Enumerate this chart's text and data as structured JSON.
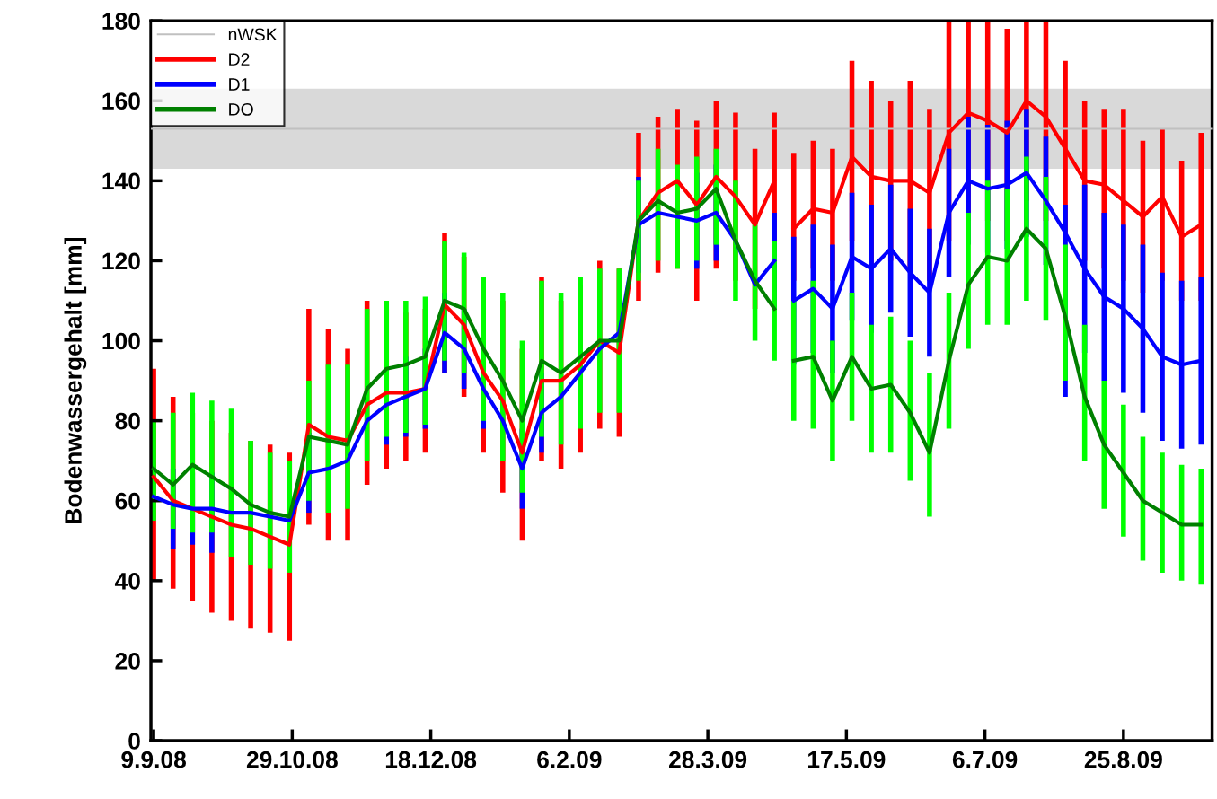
{
  "chart_data": {
    "type": "line",
    "ylabel": "Bodenwassergehalt [mm]",
    "x": [
      "2008-09-09",
      "2008-09-16",
      "2008-09-23",
      "2008-09-30",
      "2008-10-07",
      "2008-10-14",
      "2008-10-21",
      "2008-10-28",
      "2008-11-04",
      "2008-11-11",
      "2008-11-18",
      "2008-11-25",
      "2008-12-02",
      "2008-12-09",
      "2008-12-16",
      "2008-12-23",
      "2008-12-30",
      "2009-01-06",
      "2009-01-13",
      "2009-01-20",
      "2009-01-27",
      "2009-02-03",
      "2009-02-10",
      "2009-02-17",
      "2009-02-24",
      "2009-03-03",
      "2009-03-10",
      "2009-03-17",
      "2009-03-24",
      "2009-03-31",
      "2009-04-07",
      "2009-04-14",
      "2009-04-21",
      "2009-04-24",
      "2009-04-28",
      "2009-05-05",
      "2009-05-12",
      "2009-05-19",
      "2009-05-26",
      "2009-06-02",
      "2009-06-09",
      "2009-06-16",
      "2009-06-23",
      "2009-06-30",
      "2009-07-07",
      "2009-07-14",
      "2009-07-21",
      "2009-07-28",
      "2009-08-04",
      "2009-08-11",
      "2009-08-18",
      "2009-08-25",
      "2009-09-01",
      "2009-09-08",
      "2009-09-15",
      "2009-09-22"
    ],
    "series": [
      {
        "name": "nWSK",
        "color": "#c0c0c0",
        "x": [
          "2008-09-08",
          "2009-09-26"
        ],
        "values": [
          153,
          153
        ]
      },
      {
        "name": "D2",
        "color": "#ff0000",
        "values": [
          66,
          60,
          58,
          56,
          54,
          53,
          51,
          49,
          79,
          76,
          75,
          84,
          87,
          87,
          88,
          109,
          104,
          92,
          85,
          72,
          90,
          90,
          94,
          100,
          97,
          130,
          137,
          140,
          134,
          141,
          136,
          129,
          140,
          null,
          128,
          133,
          132,
          146,
          141,
          140,
          140,
          137,
          152,
          157,
          155,
          152,
          160,
          156,
          148,
          140,
          139,
          135,
          131,
          136,
          126,
          129
        ],
        "errors": [
          [
            40,
            93
          ],
          [
            38,
            86
          ],
          [
            35,
            82
          ],
          [
            32,
            80
          ],
          [
            30,
            77
          ],
          [
            28,
            75
          ],
          [
            27,
            74
          ],
          [
            25,
            72
          ],
          [
            54,
            108
          ],
          [
            50,
            103
          ],
          [
            50,
            98
          ],
          [
            64,
            110
          ],
          [
            68,
            108
          ],
          [
            70,
            107
          ],
          [
            72,
            108
          ],
          [
            92,
            127
          ],
          [
            86,
            121
          ],
          [
            72,
            113
          ],
          [
            62,
            110
          ],
          [
            50,
            98
          ],
          [
            70,
            116
          ],
          [
            68,
            110
          ],
          [
            72,
            114
          ],
          [
            78,
            120
          ],
          [
            76,
            118
          ],
          [
            110,
            152
          ],
          [
            117,
            156
          ],
          [
            118,
            158
          ],
          [
            110,
            155
          ],
          [
            118,
            160
          ],
          [
            115,
            157
          ],
          [
            108,
            148
          ],
          [
            125,
            157
          ],
          null,
          [
            115,
            147
          ],
          [
            118,
            150
          ],
          [
            115,
            148
          ],
          [
            125,
            170
          ],
          [
            118,
            165
          ],
          [
            120,
            160
          ],
          [
            118,
            165
          ],
          [
            115,
            158
          ],
          [
            125,
            180
          ],
          [
            130,
            180
          ],
          [
            130,
            180
          ],
          [
            125,
            178
          ],
          [
            135,
            180
          ],
          [
            130,
            180
          ],
          [
            125,
            170
          ],
          [
            120,
            160
          ],
          [
            118,
            158
          ],
          [
            115,
            158
          ],
          [
            112,
            150
          ],
          [
            115,
            153
          ],
          [
            110,
            145
          ],
          [
            110,
            152
          ]
        ]
      },
      {
        "name": "D1",
        "color": "#0000ff",
        "values": [
          61,
          59,
          58,
          58,
          57,
          57,
          56,
          55,
          67,
          68,
          70,
          80,
          84,
          86,
          88,
          102,
          98,
          88,
          80,
          68,
          82,
          86,
          92,
          98,
          102,
          129,
          132,
          131,
          130,
          132,
          125,
          114,
          120,
          null,
          110,
          113,
          108,
          121,
          118,
          123,
          117,
          112,
          132,
          140,
          138,
          139,
          142,
          135,
          127,
          118,
          111,
          108,
          103,
          96,
          94,
          95
        ],
        "errors": [
          null,
          [
            48,
            68
          ],
          [
            49,
            67
          ],
          [
            47,
            67
          ],
          null,
          null,
          null,
          null,
          [
            57,
            77
          ],
          null,
          null,
          null,
          [
            74,
            94
          ],
          [
            76,
            96
          ],
          [
            78,
            98
          ],
          [
            92,
            112
          ],
          [
            88,
            108
          ],
          [
            78,
            98
          ],
          null,
          [
            58,
            78
          ],
          [
            72,
            92
          ],
          null,
          null,
          null,
          null,
          [
            117,
            141
          ],
          null,
          null,
          [
            118,
            142
          ],
          [
            120,
            144
          ],
          null,
          null,
          [
            108,
            132
          ],
          null,
          [
            94,
            126
          ],
          [
            97,
            129
          ],
          [
            92,
            124
          ],
          [
            105,
            137
          ],
          [
            102,
            134
          ],
          [
            107,
            139
          ],
          [
            101,
            133
          ],
          [
            96,
            128
          ],
          [
            116,
            148
          ],
          [
            124,
            156
          ],
          [
            122,
            154
          ],
          [
            123,
            155
          ],
          [
            126,
            158
          ],
          [
            119,
            151
          ],
          [
            86,
            134
          ],
          [
            97,
            139
          ],
          [
            90,
            132
          ],
          [
            87,
            129
          ],
          [
            82,
            124
          ],
          [
            75,
            117
          ],
          [
            73,
            115
          ],
          [
            74,
            116
          ]
        ]
      },
      {
        "name": "DO",
        "color": "#008000",
        "colors": [
          "#00ff00",
          "#00ff00",
          "#00ff00",
          "#00ff00",
          "#00ff00",
          "#00ff00",
          "#00ff00",
          "#00ff00",
          "#00ff00",
          "#00ff00",
          "#00ff00",
          "#00ff00",
          "#00ff00",
          "#00ff00",
          "#00ff00",
          "#00ff00",
          "#00ff00",
          "#00ff00",
          "#00ff00",
          "#00ff00",
          "#00ff00",
          "#00ff00",
          "#00ff00",
          "#00ff00",
          "#00ff00",
          "#00ff00",
          "#00ff00",
          "#00ff00",
          "#00ff00",
          "#00ff00",
          "#00ff00",
          "#00ff00",
          "#00ff00",
          "#00ff00",
          "#00ff00",
          "#00ff00",
          "#00ff00",
          "#00ff00",
          "#00ff00",
          "#00ff00",
          "#00ff00",
          "#00ff00",
          "#00ff00",
          "#00ff00",
          "#00ff00",
          "#00ff00",
          "#00ff00",
          "#00ff00",
          "#00ff00",
          "#00ff00",
          "#00ff00",
          "#00ff00",
          "#00ff00",
          "#00ff00",
          "#00ff00",
          "#00ff00"
        ],
        "values": [
          68,
          64,
          69,
          66,
          63,
          59,
          57,
          56,
          76,
          75,
          74,
          88,
          93,
          94,
          96,
          110,
          108,
          98,
          90,
          80,
          95,
          92,
          96,
          100,
          100,
          130,
          135,
          132,
          133,
          138,
          125,
          115,
          108,
          null,
          95,
          96,
          85,
          96,
          88,
          89,
          82,
          72,
          95,
          114,
          121,
          120,
          128,
          123,
          106,
          86,
          74,
          67,
          60,
          57,
          54,
          54
        ],
        "errors": [
          [
            55,
            80
          ],
          [
            53,
            82
          ],
          [
            52,
            87
          ],
          [
            52,
            85
          ],
          [
            46,
            83
          ],
          [
            44,
            75
          ],
          [
            43,
            72
          ],
          [
            42,
            70
          ],
          [
            60,
            90
          ],
          [
            57,
            94
          ],
          [
            58,
            94
          ],
          [
            70,
            108
          ],
          [
            76,
            110
          ],
          [
            77,
            110
          ],
          [
            79,
            111
          ],
          [
            95,
            125
          ],
          [
            92,
            122
          ],
          [
            80,
            116
          ],
          [
            70,
            112
          ],
          [
            62,
            100
          ],
          [
            76,
            115
          ],
          [
            74,
            112
          ],
          [
            78,
            116
          ],
          [
            82,
            118
          ],
          [
            82,
            118
          ],
          [
            115,
            140
          ],
          [
            120,
            148
          ],
          [
            118,
            144
          ],
          [
            120,
            146
          ],
          [
            124,
            148
          ],
          [
            110,
            140
          ],
          [
            100,
            130
          ],
          [
            95,
            125
          ],
          null,
          [
            80,
            110
          ],
          [
            78,
            115
          ],
          [
            70,
            100
          ],
          [
            80,
            112
          ],
          [
            72,
            104
          ],
          [
            72,
            106
          ],
          [
            65,
            100
          ],
          [
            56,
            92
          ],
          [
            78,
            112
          ],
          [
            98,
            132
          ],
          [
            104,
            140
          ],
          [
            104,
            138
          ],
          [
            110,
            146
          ],
          [
            105,
            141
          ],
          [
            90,
            124
          ],
          [
            70,
            104
          ],
          [
            58,
            90
          ],
          [
            51,
            84
          ],
          [
            45,
            76
          ],
          [
            42,
            72
          ],
          [
            40,
            69
          ],
          [
            39,
            68
          ]
        ]
      }
    ],
    "xlim": [
      "2008-09-08",
      "2009-09-26"
    ],
    "xticks": [
      {
        "value": "2008-09-09",
        "label": "9.9.08"
      },
      {
        "value": "2008-10-29",
        "label": "29.10.08"
      },
      {
        "value": "2008-12-18",
        "label": "18.12.08"
      },
      {
        "value": "2009-02-06",
        "label": "6.2.09"
      },
      {
        "value": "2009-03-28",
        "label": "28.3.09"
      },
      {
        "value": "2009-05-17",
        "label": "17.5.09"
      },
      {
        "value": "2009-07-06",
        "label": "6.7.09"
      },
      {
        "value": "2009-08-25",
        "label": "25.8.09"
      }
    ],
    "ylim": [
      0,
      180
    ],
    "yticks": [
      0,
      20,
      40,
      60,
      80,
      100,
      120,
      140,
      160,
      180
    ],
    "bands": [
      {
        "axis": "y",
        "from": 143,
        "to": 163,
        "color": "#d9d9d9"
      }
    ],
    "grid": false,
    "legend": "top left"
  }
}
